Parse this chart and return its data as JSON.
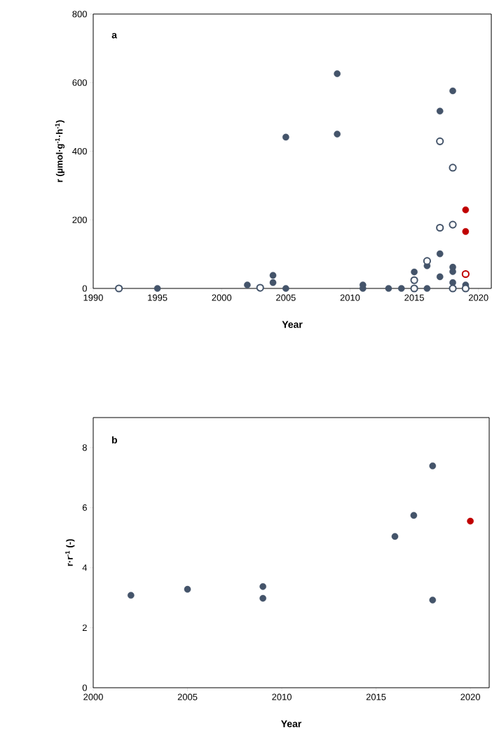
{
  "chart_data": [
    {
      "type": "scatter",
      "title": "a",
      "xlabel": "Year",
      "ylabel": "**r (µmol·g$^{-1}$·h$^{-1}$)**",
      "xlim": [
        1990,
        2021
      ],
      "ylim": [
        0,
        800
      ],
      "xticks": [
        1990,
        1995,
        2000,
        2005,
        2010,
        2015,
        2020
      ],
      "yticks": [
        0,
        200,
        400,
        600,
        800
      ],
      "grid": false,
      "series": [
        {
          "color": "#44546a",
          "marker": "circle",
          "x": [
            1995,
            2002,
            2004,
            2004,
            2005,
            2005,
            2009,
            2009,
            2011,
            2011,
            2013,
            2014,
            2015,
            2016,
            2016,
            2017,
            2017,
            2017,
            2018,
            2018,
            2018,
            2018,
            2019
          ],
          "values": [
            0,
            10,
            38,
            17,
            0,
            441,
            626,
            450,
            10,
            0,
            0,
            0,
            48,
            66,
            0,
            517,
            101,
            34,
            576,
            62,
            49,
            17,
            10
          ]
        },
        {
          "color": "#44546a",
          "marker": "circle open",
          "x": [
            1992,
            2003,
            2015,
            2015,
            2016,
            2017,
            2017,
            2018,
            2018,
            2018,
            2019
          ],
          "values": [
            0,
            2,
            24,
            0,
            80,
            429,
            177,
            352,
            186,
            0,
            0
          ]
        },
        {
          "color": "#c00000",
          "marker": "circle",
          "x": [
            2019,
            2019
          ],
          "values": [
            229,
            166
          ]
        },
        {
          "color": "#c00000",
          "marker": "circle open",
          "x": [
            2019
          ],
          "values": [
            42
          ]
        }
      ]
    },
    {
      "type": "scatter",
      "title": "b",
      "xlabel": "Year",
      "ylabel": "**r·r$^{-1}$ (-)**",
      "xlim": [
        2000,
        2021
      ],
      "ylim": [
        0,
        9
      ],
      "xticks": [
        2000,
        2005,
        2010,
        2015,
        2020
      ],
      "yticks": [
        0,
        2,
        4,
        6,
        8
      ],
      "grid": false,
      "series": [
        {
          "color": "#44546a",
          "marker": "circle",
          "x": [
            2002,
            2005,
            2009,
            2009,
            2016,
            2017,
            2018,
            2018
          ],
          "values": [
            3.08,
            3.28,
            3.37,
            2.98,
            5.04,
            5.74,
            7.39,
            2.92
          ]
        },
        {
          "color": "#c00000",
          "marker": "circle",
          "x": [
            2020
          ],
          "values": [
            5.55
          ]
        }
      ]
    }
  ]
}
